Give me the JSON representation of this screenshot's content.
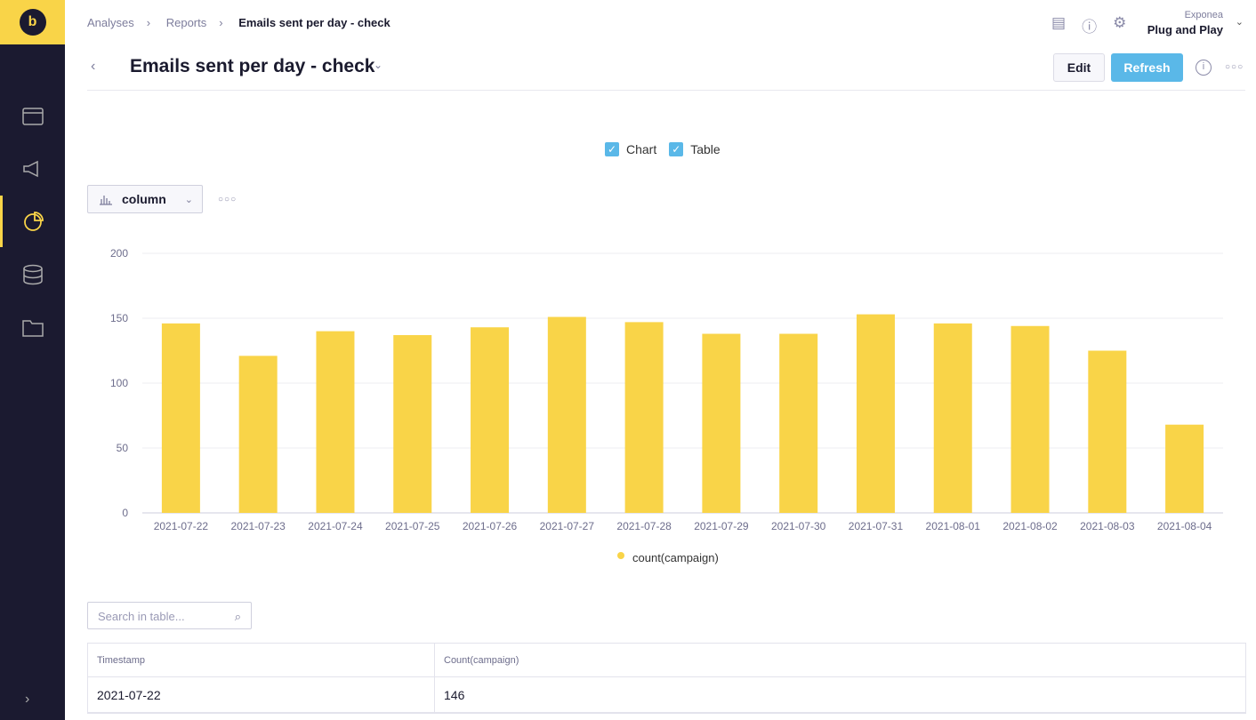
{
  "breadcrumb": [
    "Analyses",
    "Reports",
    "Emails sent per day - check"
  ],
  "title": "Emails sent per day - check",
  "account": {
    "org": "Exponea",
    "project": "Plug and Play"
  },
  "buttons": {
    "edit": "Edit",
    "refresh": "Refresh"
  },
  "toggles": {
    "chart": "Chart",
    "table": "Table"
  },
  "chart_type": "column",
  "search_placeholder": "Search in table...",
  "colors": {
    "bar": "#f9d448",
    "accent": "#5ab8e8",
    "sidebar": "#1b1a30"
  },
  "chart_data": {
    "type": "bar",
    "categories": [
      "2021-07-22",
      "2021-07-23",
      "2021-07-24",
      "2021-07-25",
      "2021-07-26",
      "2021-07-27",
      "2021-07-28",
      "2021-07-29",
      "2021-07-30",
      "2021-07-31",
      "2021-08-01",
      "2021-08-02",
      "2021-08-03",
      "2021-08-04"
    ],
    "series": [
      {
        "name": "count(campaign)",
        "values": [
          146,
          121,
          140,
          137,
          143,
          151,
          147,
          138,
          138,
          153,
          146,
          144,
          125,
          68
        ]
      }
    ],
    "yticks": [
      0,
      50,
      100,
      150,
      200
    ],
    "ylim": [
      0,
      200
    ],
    "legend": "bottom"
  },
  "table": {
    "headers": [
      "Timestamp",
      "Count(campaign)"
    ],
    "rows": [
      [
        "2021-07-22",
        "146"
      ]
    ]
  }
}
